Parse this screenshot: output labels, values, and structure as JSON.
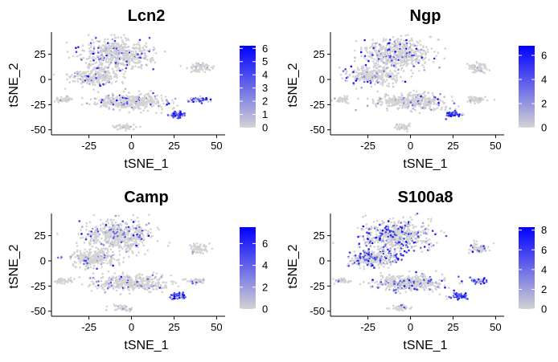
{
  "panels": [
    {
      "title": "Lcn2",
      "xlabel": "tSNE_1",
      "ylabel": "tSNE_2",
      "legend_ticks": [
        "0",
        "1",
        "2",
        "3",
        "4",
        "5",
        "6"
      ],
      "legend_values": [
        0,
        1,
        2,
        3,
        4,
        5,
        6
      ],
      "legend_max": 6.2
    },
    {
      "title": "Ngp",
      "xlabel": "tSNE_1",
      "ylabel": "tSNE_2",
      "legend_ticks": [
        "0",
        "2",
        "4",
        "6"
      ],
      "legend_values": [
        0,
        2,
        4,
        6
      ],
      "legend_max": 6.8
    },
    {
      "title": "Camp",
      "xlabel": "tSNE_1",
      "ylabel": "tSNE_2",
      "legend_ticks": [
        "0",
        "2",
        "4",
        "6"
      ],
      "legend_values": [
        0,
        2,
        4,
        6
      ],
      "legend_max": 7.5
    },
    {
      "title": "S100a8",
      "xlabel": "tSNE_1",
      "ylabel": "tSNE_2",
      "legend_ticks": [
        "0",
        "2",
        "4",
        "6",
        "8"
      ],
      "legend_values": [
        0,
        2,
        4,
        6,
        8
      ],
      "legend_max": 8.3
    }
  ],
  "colors": {
    "low": "#d3d3d3",
    "high": "#0000ff"
  },
  "chart_data": [
    {
      "type": "scatter",
      "title": "Lcn2",
      "xlabel": "tSNE_1",
      "ylabel": "tSNE_2",
      "xlim": [
        -47,
        55
      ],
      "ylim": [
        -55,
        47
      ],
      "xticks": [
        -25,
        0,
        25,
        50
      ],
      "yticks": [
        -50,
        -25,
        0,
        25
      ],
      "grid": false,
      "legend": "right",
      "color_scale": {
        "min": 0,
        "max": 6.2
      },
      "clusters": [
        {
          "center": [
            -8,
            25
          ],
          "spread": [
            20,
            15
          ],
          "level": 0.12
        },
        {
          "center": [
            -22,
            3
          ],
          "spread": [
            14,
            9
          ],
          "level": 0.08
        },
        {
          "center": [
            0,
            -22
          ],
          "spread": [
            22,
            8
          ],
          "level": 0.06
        },
        {
          "center": [
            -40,
            -20
          ],
          "spread": [
            5,
            3
          ],
          "level": 0.0
        },
        {
          "center": [
            40,
            12
          ],
          "spread": [
            6,
            5
          ],
          "level": 0.0
        },
        {
          "center": [
            38,
            -20
          ],
          "spread": [
            6,
            3
          ],
          "level": 0.65
        },
        {
          "center": [
            27,
            -35
          ],
          "spread": [
            5,
            3
          ],
          "level": 0.8
        },
        {
          "center": [
            -5,
            -47
          ],
          "spread": [
            6,
            3
          ],
          "level": 0.0
        }
      ]
    },
    {
      "type": "scatter",
      "title": "Ngp",
      "xlabel": "tSNE_1",
      "ylabel": "tSNE_2",
      "xlim": [
        -47,
        55
      ],
      "ylim": [
        -55,
        47
      ],
      "xticks": [
        -25,
        0,
        25,
        50
      ],
      "yticks": [
        -50,
        -25,
        0,
        25
      ],
      "grid": false,
      "legend": "right",
      "color_scale": {
        "min": 0,
        "max": 6.8
      },
      "clusters": [
        {
          "center": [
            -8,
            25
          ],
          "spread": [
            20,
            15
          ],
          "level": 0.12
        },
        {
          "center": [
            -22,
            3
          ],
          "spread": [
            14,
            9
          ],
          "level": 0.08
        },
        {
          "center": [
            0,
            -22
          ],
          "spread": [
            22,
            8
          ],
          "level": 0.06
        },
        {
          "center": [
            -40,
            -20
          ],
          "spread": [
            5,
            3
          ],
          "level": 0.0
        },
        {
          "center": [
            40,
            12
          ],
          "spread": [
            6,
            5
          ],
          "level": 0.0
        },
        {
          "center": [
            38,
            -20
          ],
          "spread": [
            6,
            3
          ],
          "level": 0.05
        },
        {
          "center": [
            25,
            -35
          ],
          "spread": [
            5,
            3
          ],
          "level": 0.8
        },
        {
          "center": [
            -5,
            -47
          ],
          "spread": [
            6,
            3
          ],
          "level": 0.0
        }
      ]
    },
    {
      "type": "scatter",
      "title": "Camp",
      "xlabel": "tSNE_1",
      "ylabel": "tSNE_2",
      "xlim": [
        -47,
        55
      ],
      "ylim": [
        -55,
        47
      ],
      "xticks": [
        -25,
        0,
        25,
        50
      ],
      "yticks": [
        -50,
        -25,
        0,
        25
      ],
      "grid": false,
      "legend": "right",
      "color_scale": {
        "min": 0,
        "max": 7.5
      },
      "clusters": [
        {
          "center": [
            -8,
            25
          ],
          "spread": [
            20,
            15
          ],
          "level": 0.12
        },
        {
          "center": [
            -22,
            3
          ],
          "spread": [
            14,
            9
          ],
          "level": 0.08
        },
        {
          "center": [
            0,
            -22
          ],
          "spread": [
            22,
            8
          ],
          "level": 0.06
        },
        {
          "center": [
            -40,
            -20
          ],
          "spread": [
            5,
            3
          ],
          "level": 0.0
        },
        {
          "center": [
            40,
            12
          ],
          "spread": [
            6,
            5
          ],
          "level": 0.0
        },
        {
          "center": [
            38,
            -20
          ],
          "spread": [
            6,
            3
          ],
          "level": 0.05
        },
        {
          "center": [
            27,
            -35
          ],
          "spread": [
            5,
            3
          ],
          "level": 0.8
        },
        {
          "center": [
            -5,
            -47
          ],
          "spread": [
            6,
            3
          ],
          "level": 0.0
        }
      ]
    },
    {
      "type": "scatter",
      "title": "S100a8",
      "xlabel": "tSNE_1",
      "ylabel": "tSNE_2",
      "xlim": [
        -47,
        55
      ],
      "ylim": [
        -55,
        47
      ],
      "xticks": [
        -25,
        0,
        25,
        50
      ],
      "yticks": [
        -50,
        -25,
        0,
        25
      ],
      "grid": false,
      "legend": "right",
      "color_scale": {
        "min": 0,
        "max": 8.3
      },
      "clusters": [
        {
          "center": [
            -8,
            25
          ],
          "spread": [
            20,
            15
          ],
          "level": 0.3
        },
        {
          "center": [
            -22,
            3
          ],
          "spread": [
            14,
            9
          ],
          "level": 0.35
        },
        {
          "center": [
            0,
            -22
          ],
          "spread": [
            22,
            8
          ],
          "level": 0.15
        },
        {
          "center": [
            -40,
            -20
          ],
          "spread": [
            5,
            3
          ],
          "level": 0.1
        },
        {
          "center": [
            40,
            12
          ],
          "spread": [
            6,
            5
          ],
          "level": 0.1
        },
        {
          "center": [
            40,
            -20
          ],
          "spread": [
            6,
            3
          ],
          "level": 0.75
        },
        {
          "center": [
            27,
            -35
          ],
          "spread": [
            5,
            3
          ],
          "level": 0.85
        },
        {
          "center": [
            -5,
            -47
          ],
          "spread": [
            6,
            3
          ],
          "level": 0.05
        }
      ]
    }
  ]
}
